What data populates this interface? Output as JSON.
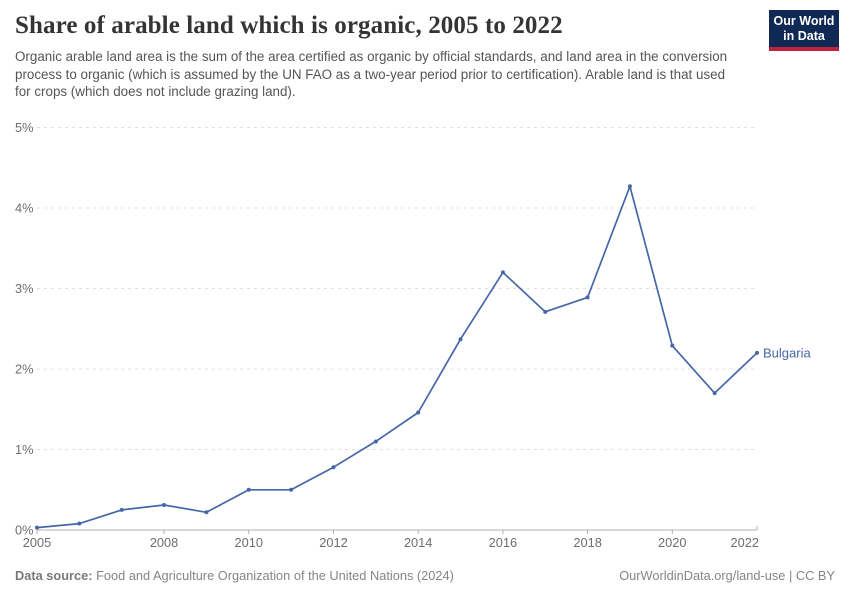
{
  "header": {
    "title": "Share of arable land which is organic, 2005 to 2022",
    "subtitle": "Organic arable land area is the sum of the area certified as organic by official standards, and land area in the conversion process to organic (which is assumed by the UN FAO as a two-year period prior to certification). Arable land is that used for crops (which does not include grazing land).",
    "logo": {
      "line1": "Our World",
      "line2": "in Data",
      "bg_color": "#102954",
      "accent_color": "#c0243c"
    }
  },
  "chart_data": {
    "type": "line",
    "title": "Share of arable land which is organic, 2005 to 2022",
    "xlabel": "",
    "ylabel": "",
    "unit": "%",
    "xlim": [
      2005,
      2022
    ],
    "ylim": [
      0,
      5
    ],
    "grid": "horizontal-dashed",
    "legend_position": "end-of-line-label",
    "x": [
      2005,
      2006,
      2007,
      2008,
      2009,
      2010,
      2011,
      2012,
      2013,
      2014,
      2015,
      2016,
      2017,
      2018,
      2019,
      2020,
      2021,
      2022
    ],
    "series": [
      {
        "name": "Bulgaria",
        "color": "#4566a8",
        "values": [
          0.03,
          0.08,
          0.25,
          0.31,
          0.22,
          0.5,
          0.5,
          0.78,
          1.1,
          1.46,
          2.37,
          3.2,
          2.71,
          2.89,
          4.27,
          2.29,
          1.7,
          2.2
        ]
      }
    ],
    "x_ticks": [
      2005,
      2008,
      2010,
      2012,
      2014,
      2016,
      2018,
      2020,
      2022
    ],
    "y_ticks": [
      0,
      1,
      2,
      3,
      4,
      5
    ],
    "y_tick_labels": [
      "0%",
      "1%",
      "2%",
      "3%",
      "4%",
      "5%"
    ],
    "axis_color": "#b0b0b0",
    "gridline_color": "#e0e0e0",
    "tick_label_color": "#6e6e6e"
  },
  "footer": {
    "datasource_label": "Data source:",
    "datasource_text": "Food and Agriculture Organization of the United Nations (2024)",
    "url": "OurWorldinData.org/land-use",
    "divider": "|",
    "license": "CC BY"
  }
}
